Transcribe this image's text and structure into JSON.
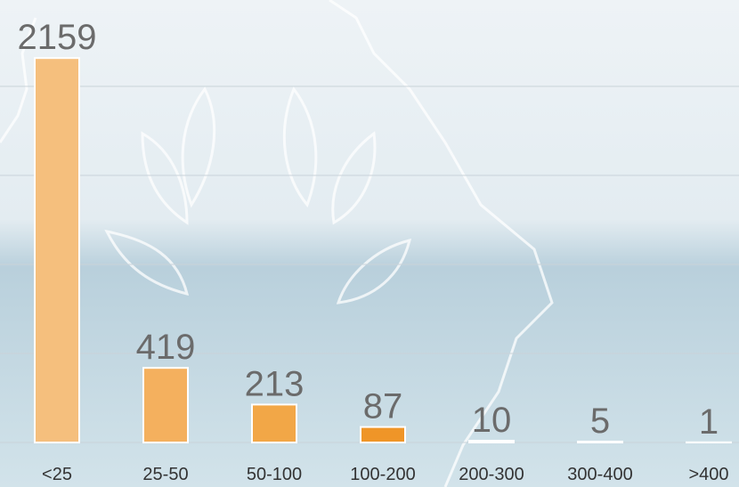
{
  "chart_data": {
    "type": "bar",
    "categories": [
      "<25",
      "25-50",
      "50-100",
      "100-200",
      "200-300",
      "300-400",
      ">400"
    ],
    "values": [
      2159,
      419,
      213,
      87,
      10,
      5,
      1
    ],
    "colors": [
      "#f5bf7d",
      "#f4b05e",
      "#f2a747",
      "#ef9528",
      "#f0a040",
      "#f0a040",
      "#f0a040"
    ],
    "ylim": [
      0,
      2400
    ],
    "yticks": [
      0,
      500,
      1000,
      1500,
      2000
    ],
    "grid": true
  }
}
